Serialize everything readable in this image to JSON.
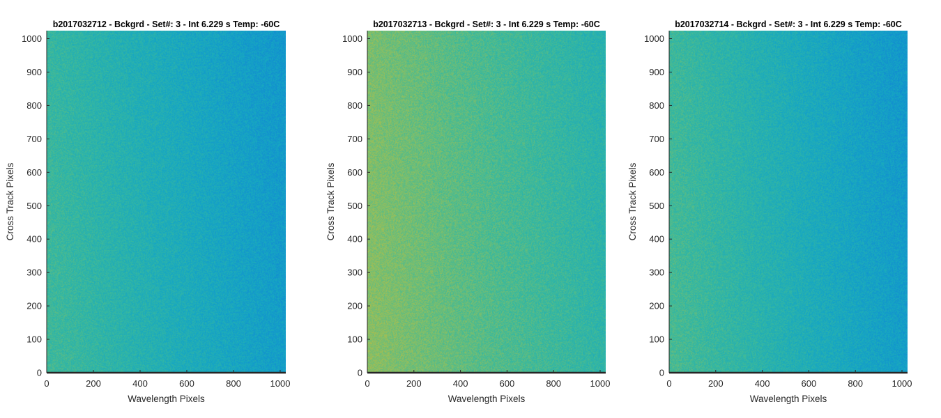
{
  "chart_data": [
    {
      "type": "heatmap",
      "title": "b2017032712 - Bckgrd - Set#: 3 - Int 6.229 s Temp: -60C",
      "xlabel": "Wavelength Pixels",
      "ylabel": "Cross Track Pixels",
      "xlim": [
        0,
        1024
      ],
      "ylim": [
        0,
        1024
      ],
      "xticks": [
        0,
        200,
        400,
        600,
        800,
        1000
      ],
      "yticks": [
        0,
        100,
        200,
        300,
        400,
        500,
        600,
        700,
        800,
        900,
        1000
      ],
      "grid": false,
      "colormap": "parula",
      "intensity_gradient": {
        "left": 0.6,
        "right": 0.4
      }
    },
    {
      "type": "heatmap",
      "title": "b2017032713 - Bckgrd - Set#: 3 - Int 6.229 s Temp: -60C",
      "xlabel": "Wavelength Pixels",
      "ylabel": "Cross Track Pixels",
      "xlim": [
        0,
        1024
      ],
      "ylim": [
        0,
        1024
      ],
      "xticks": [
        0,
        200,
        400,
        600,
        800,
        1000
      ],
      "yticks": [
        0,
        100,
        200,
        300,
        400,
        500,
        600,
        700,
        800,
        900,
        1000
      ],
      "grid": false,
      "colormap": "parula",
      "intensity_gradient": {
        "left": 0.74,
        "right": 0.55
      }
    },
    {
      "type": "heatmap",
      "title": "b2017032714 - Bckgrd - Set#: 3 - Int 6.229 s Temp: -60C",
      "xlabel": "Wavelength Pixels",
      "ylabel": "Cross Track Pixels",
      "xlim": [
        0,
        1024
      ],
      "ylim": [
        0,
        1024
      ],
      "xticks": [
        0,
        200,
        400,
        600,
        800,
        1000
      ],
      "yticks": [
        0,
        100,
        200,
        300,
        400,
        500,
        600,
        700,
        800,
        900,
        1000
      ],
      "grid": false,
      "colormap": "parula",
      "intensity_gradient": {
        "left": 0.62,
        "right": 0.4
      }
    }
  ],
  "colors": {
    "axis": "#262626",
    "parula_low": "#1a9dd0",
    "parula_mid": "#32b4b0",
    "parula_high": "#78c47a"
  }
}
